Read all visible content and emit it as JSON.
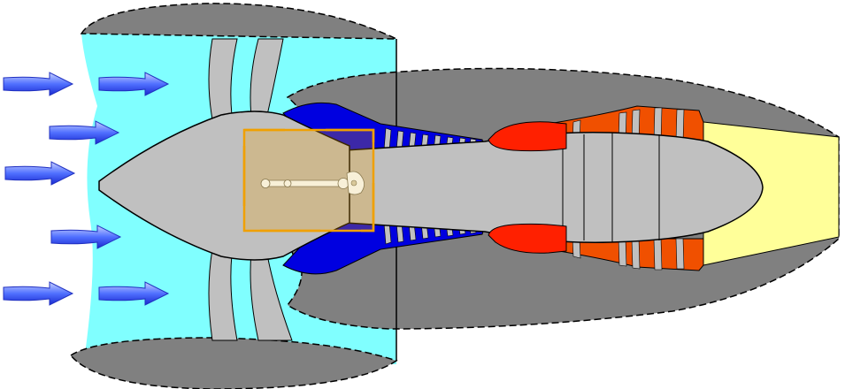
{
  "diagram": {
    "subject": "turbofan-engine-cross-section",
    "colors": {
      "intake_air": "#80FFFF",
      "cowl": "#808080",
      "engine_core": "#C0C0C0",
      "compressor_blue": "#0000E0",
      "combustor_red": "#FF2000",
      "turbine_orange": "#F05000",
      "exhaust_yellow": "#FFFF99",
      "highlight_box": "#F0A000",
      "arrow_blue": "#4060FF"
    },
    "icons": {
      "airflow": "arrow-right-icon",
      "shaft": "drive-shaft-icon"
    },
    "airflow_arrows": [
      {
        "id": "arrow-1"
      },
      {
        "id": "arrow-2"
      },
      {
        "id": "arrow-3"
      },
      {
        "id": "arrow-4"
      },
      {
        "id": "arrow-5"
      },
      {
        "id": "arrow-6"
      },
      {
        "id": "arrow-7"
      },
      {
        "id": "arrow-8"
      }
    ]
  }
}
